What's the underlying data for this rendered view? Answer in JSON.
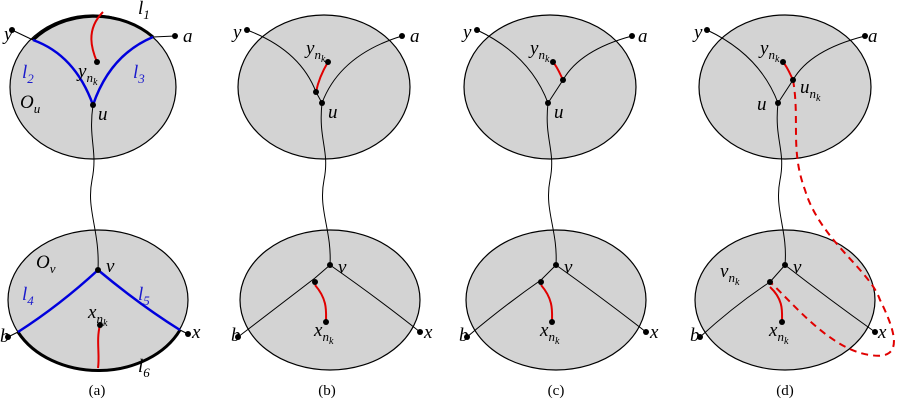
{
  "panels": [
    {
      "caption": "(a)",
      "labels": [
        {
          "base": "y"
        },
        {
          "base": "l",
          "sub": "1"
        },
        {
          "base": "a"
        },
        {
          "base": "l",
          "sub": "2"
        },
        {
          "base": "y",
          "sub": "n",
          "subsub": "k"
        },
        {
          "base": "l",
          "sub": "3"
        },
        {
          "base": "O",
          "sub": "u"
        },
        {
          "base": "u"
        },
        {
          "base": "O",
          "sub": "v"
        },
        {
          "base": "v"
        },
        {
          "base": "l",
          "sub": "4"
        },
        {
          "base": "l",
          "sub": "5"
        },
        {
          "base": "b"
        },
        {
          "base": "x",
          "sub": "n",
          "subsub": "k"
        },
        {
          "base": "x"
        },
        {
          "base": "l",
          "sub": "6"
        }
      ]
    },
    {
      "caption": "(b)",
      "labels": [
        {
          "base": "y"
        },
        {
          "base": "y",
          "sub": "n",
          "subsub": "k"
        },
        {
          "base": "a"
        },
        {
          "base": "u"
        },
        {
          "base": "v"
        },
        {
          "base": "b"
        },
        {
          "base": "x",
          "sub": "n",
          "subsub": "k"
        },
        {
          "base": "x"
        }
      ]
    },
    {
      "caption": "(c)",
      "labels": [
        {
          "base": "y"
        },
        {
          "base": "y",
          "sub": "n",
          "subsub": "k"
        },
        {
          "base": "a"
        },
        {
          "base": "u"
        },
        {
          "base": "v"
        },
        {
          "base": "b"
        },
        {
          "base": "x",
          "sub": "n",
          "subsub": "k"
        },
        {
          "base": "x"
        }
      ]
    },
    {
      "caption": "(d)",
      "labels": [
        {
          "base": "y"
        },
        {
          "base": "y",
          "sub": "n",
          "subsub": "k"
        },
        {
          "base": "a"
        },
        {
          "base": "u"
        },
        {
          "base": "u",
          "sub": "n",
          "subsub": "k"
        },
        {
          "base": "v"
        },
        {
          "base": "v",
          "sub": "n",
          "subsub": "k"
        },
        {
          "base": "b"
        },
        {
          "base": "x",
          "sub": "n",
          "subsub": "k"
        },
        {
          "base": "x"
        }
      ]
    }
  ]
}
